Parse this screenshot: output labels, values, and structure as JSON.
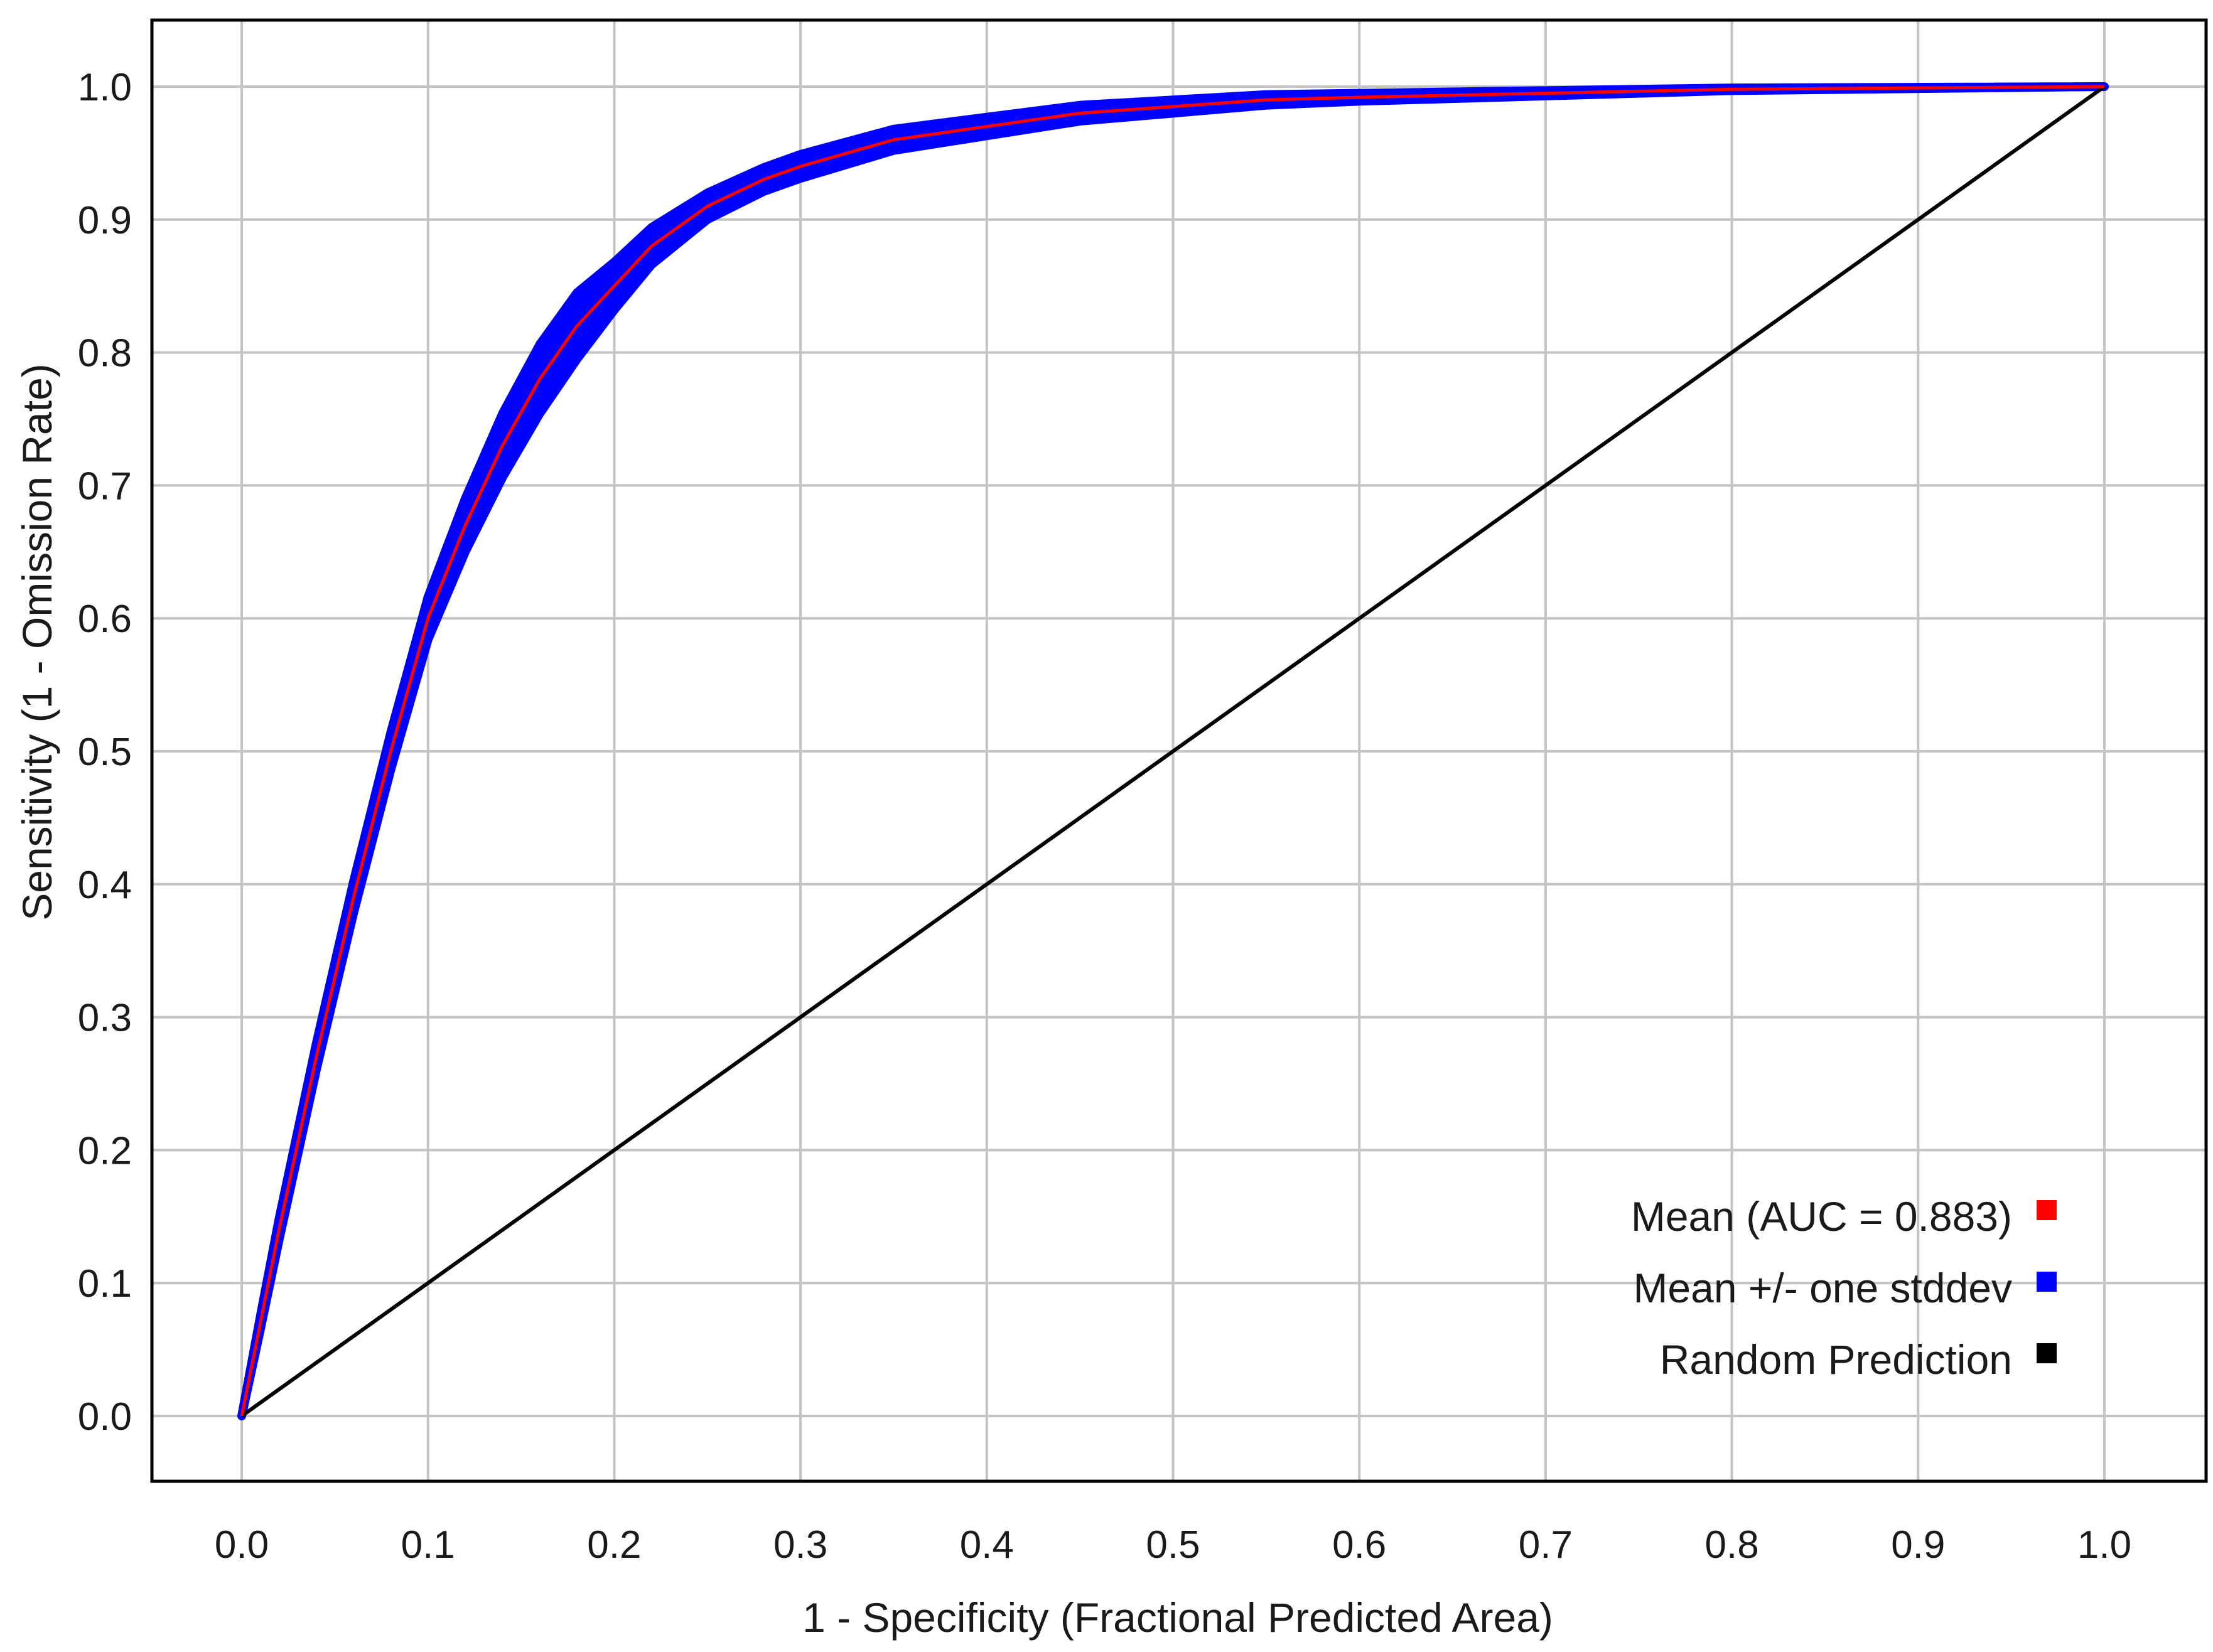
{
  "chart_data": {
    "type": "line",
    "title": "",
    "xlabel": "1 - Specificity (Fractional Predicted Area)",
    "ylabel": "Sensitivity (1 - Omission Rate)",
    "xlim": [
      0.0,
      1.0
    ],
    "ylim": [
      0.0,
      1.0
    ],
    "x_ticks": [
      "0.0",
      "0.1",
      "0.2",
      "0.3",
      "0.4",
      "0.5",
      "0.6",
      "0.7",
      "0.8",
      "0.9",
      "1.0"
    ],
    "y_ticks": [
      "0.0",
      "0.1",
      "0.2",
      "0.3",
      "0.4",
      "0.5",
      "0.6",
      "0.7",
      "0.8",
      "0.9",
      "1.0"
    ],
    "grid": true,
    "legend_position": "bottom-right",
    "legend": [
      {
        "label": "Mean (AUC = 0.883)",
        "color": "#ff0000"
      },
      {
        "label": "Mean +/- one stddev",
        "color": "#0000ff"
      },
      {
        "label": "Random Prediction",
        "color": "#000000"
      }
    ],
    "series": [
      {
        "name": "Mean (AUC = 0.883)",
        "color": "#ff0000",
        "x": [
          0.0,
          0.01,
          0.02,
          0.04,
          0.06,
          0.08,
          0.1,
          0.12,
          0.14,
          0.16,
          0.18,
          0.2,
          0.22,
          0.25,
          0.28,
          0.3,
          0.35,
          0.4,
          0.45,
          0.5,
          0.55,
          0.6,
          0.7,
          0.8,
          0.9,
          1.0
        ],
        "y": [
          0.0,
          0.07,
          0.14,
          0.27,
          0.39,
          0.5,
          0.6,
          0.67,
          0.73,
          0.78,
          0.82,
          0.85,
          0.88,
          0.91,
          0.93,
          0.94,
          0.96,
          0.97,
          0.98,
          0.985,
          0.99,
          0.992,
          0.995,
          0.998,
          0.999,
          1.0
        ]
      },
      {
        "name": "Mean +/- one stddev",
        "color": "#0000ff",
        "x": [
          0.0,
          0.01,
          0.02,
          0.04,
          0.06,
          0.08,
          0.1,
          0.12,
          0.14,
          0.16,
          0.18,
          0.2,
          0.22,
          0.25,
          0.28,
          0.3,
          0.35,
          0.4,
          0.45,
          0.5,
          0.55,
          0.6,
          0.7,
          0.8,
          0.9,
          1.0
        ],
        "spread": [
          0.0,
          0.005,
          0.008,
          0.01,
          0.012,
          0.014,
          0.016,
          0.02,
          0.024,
          0.026,
          0.025,
          0.018,
          0.014,
          0.01,
          0.009,
          0.009,
          0.008,
          0.007,
          0.006,
          0.005,
          0.004,
          0.003,
          0.002,
          0.001,
          0.0005,
          0.0
        ]
      },
      {
        "name": "Random Prediction",
        "color": "#000000",
        "x": [
          0.0,
          1.0
        ],
        "y": [
          0.0,
          1.0
        ]
      }
    ]
  }
}
